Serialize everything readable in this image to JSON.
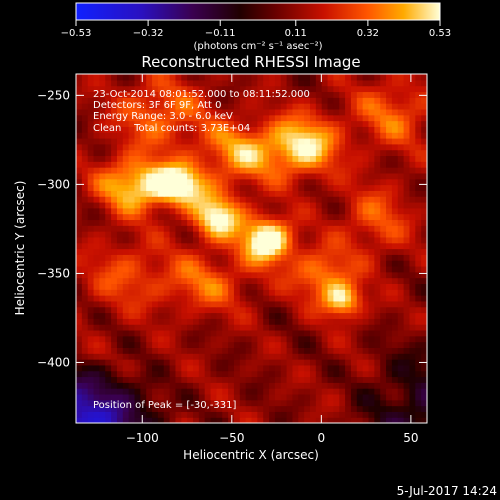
{
  "chart_data": {
    "type": "heatmap",
    "title": "Reconstructed RHESSI Image",
    "xlabel": "Heliocentric X (arcsec)",
    "ylabel": "Heliocentric Y (arcsec)",
    "xlim": [
      -137,
      59
    ],
    "ylim": [
      -434,
      -238
    ],
    "x_ticks": [
      -100,
      -50,
      0,
      50
    ],
    "x_tick_labels": [
      "−100",
      "−50",
      "0",
      "50"
    ],
    "y_ticks": [
      -250,
      -300,
      -350,
      -400
    ],
    "y_tick_labels": [
      "−250",
      "−300",
      "−350",
      "−400"
    ],
    "colorbar": {
      "range": [
        -0.53,
        0.53
      ],
      "ticks": [
        -0.53,
        -0.32,
        -0.11,
        0.11,
        0.32,
        0.53
      ],
      "tick_labels": [
        "−0.53",
        "−0.32",
        "−0.11",
        "0.11",
        "0.32",
        "0.53"
      ],
      "unit_label": "(photons cm⁻² s⁻¹ asec⁻²)",
      "colormap": "red-temperature"
    },
    "annotations": [
      "23-Oct-2014 08:01:52.000 to 08:11:52.000",
      "Detectors: 3F 6F 9F, Att 0",
      "Energy Range: 3.0 - 6.0 keV",
      "Clean    Total counts: 3.73E+04"
    ],
    "peak_label": "Position of Peak = [-30,-331]",
    "peak_position": [
      -30,
      -331
    ],
    "sources": [
      {
        "x": -30,
        "y": -331,
        "sigma_x": 10,
        "sigma_y": 9,
        "amp": 0.53
      },
      {
        "x": -80,
        "y": -300,
        "sigma_x": 11,
        "sigma_y": 8,
        "amp": 0.46
      },
      {
        "x": -58,
        "y": -318,
        "sigma_x": 10,
        "sigma_y": 9,
        "amp": 0.44
      },
      {
        "x": -105,
        "y": -300,
        "sigma_x": 14,
        "sigma_y": 11,
        "amp": 0.38
      },
      {
        "x": -10,
        "y": -278,
        "sigma_x": 14,
        "sigma_y": 12,
        "amp": 0.4
      },
      {
        "x": -45,
        "y": -282,
        "sigma_x": 16,
        "sigma_y": 12,
        "amp": 0.3
      },
      {
        "x": 12,
        "y": -365,
        "sigma_x": 8,
        "sigma_y": 7,
        "amp": 0.38
      },
      {
        "x": 0,
        "y": -350,
        "sigma_x": 12,
        "sigma_y": 10,
        "amp": 0.28
      },
      {
        "x": -90,
        "y": -260,
        "sigma_x": 18,
        "sigma_y": 14,
        "amp": 0.24
      },
      {
        "x": 40,
        "y": -260,
        "sigma_x": 16,
        "sigma_y": 14,
        "amp": 0.22
      },
      {
        "x": -65,
        "y": -355,
        "sigma_x": 18,
        "sigma_y": 12,
        "amp": 0.22
      },
      {
        "x": -110,
        "y": -350,
        "sigma_x": 16,
        "sigma_y": 14,
        "amp": 0.18
      },
      {
        "x": 30,
        "y": -320,
        "sigma_x": 14,
        "sigma_y": 14,
        "amp": 0.2
      }
    ],
    "background_level": 0.1,
    "grid": false
  },
  "footer": {
    "date": "5-Jul-2017 14:24"
  }
}
